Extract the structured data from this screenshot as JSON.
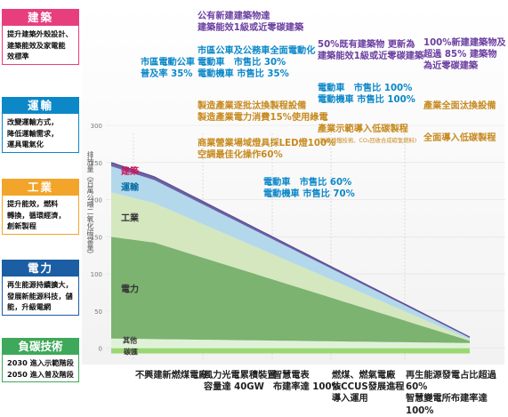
{
  "sections": [
    {
      "title": "建築",
      "color": "#e73f7e",
      "body": "提升建築外殼設計、\n建築能效及家電能\n效標準"
    },
    {
      "title": "運輸",
      "color": "#0c88c9",
      "body": "改變運輸方式，\n降低運輸需求，\n運具電氣化"
    },
    {
      "title": "工業",
      "color": "#f2a52a",
      "body": "提升能效，燃料\n轉換，循環經濟，\n創新製程"
    },
    {
      "title": "電力",
      "color": "#1b5ea3",
      "body": "再生能源持續擴大，\n發展新能源科技，儲\n能，升級電網"
    },
    {
      "title": "負碳技術",
      "color": "#3ea95a",
      "body": "2030 進入示範階段\n2050 進入普及階段"
    }
  ],
  "annotations_top": [
    {
      "id": "a1",
      "text": "市區電動公車\n普及率 35%",
      "color": "#0c88c9"
    },
    {
      "id": "a2",
      "text": "公有新建建築物達\n建築能效1級或近零碳建築",
      "color": "#6b3fa0"
    },
    {
      "id": "a3",
      "text": "市區公車及公務車全面電動化\n電動車　市售比 30%\n電動機車 市售比 35%",
      "color": "#0c88c9"
    },
    {
      "id": "a4",
      "text": "製造產業逐批汰換製程設備\n製造產業電力消費15%使用綠電",
      "color": "#c78a1f"
    },
    {
      "id": "a5",
      "text": "商業營業場域燈具採LED燈100%\n空調最佳化操作60%",
      "color": "#c78a1f"
    },
    {
      "id": "a6",
      "text": "50%既有建築物 更新為\n建築能效1級或近零碳建築",
      "color": "#6b3fa0"
    },
    {
      "id": "a7",
      "text": "電動車　市售比 100%\n電動機車 市售比 100%",
      "color": "#0c88c9"
    },
    {
      "id": "a8",
      "text": "產業示範導入低碳製程",
      "color": "#c78a1f"
    },
    {
      "id": "a8s",
      "text": "(氫能煉鐵技術、CO₂回收合成碳氫燃料)",
      "color": "#c78a1f"
    },
    {
      "id": "a9",
      "text": "100%新建建築物及\n超過 85% 建築物\n為近零碳建築",
      "color": "#6b3fa0"
    },
    {
      "id": "a10",
      "text": "產業全面汰換設備",
      "color": "#c78a1f"
    },
    {
      "id": "a11",
      "text": "全面導入低碳製程",
      "color": "#c78a1f"
    },
    {
      "id": "a12",
      "text": "電動車　市售比 60%\n電動機車 市售比 70%",
      "color": "#0c88c9"
    }
  ],
  "annotations_bottom": [
    {
      "id": "b1",
      "text": "不興建新燃煤電廠"
    },
    {
      "id": "b2",
      "text": "風力光電累積裝置\n容量達 40GW"
    },
    {
      "id": "b3",
      "text": "智慧電表\n布建率達 100%"
    },
    {
      "id": "b4",
      "text": "燃煤、燃氣電廠\n依CCUS發展進程\n導入運用"
    },
    {
      "id": "b5",
      "text": "再生能源發電占比超過 60%\n智慧變電所布建率達 100%"
    }
  ],
  "y_axis_label": "排放量（百萬公噸二氧化碳當量）",
  "chart_data": {
    "type": "area",
    "ylim": [
      -10,
      300
    ],
    "yticks": [
      0,
      50,
      100,
      150,
      200,
      250,
      300
    ],
    "xlim": [
      0,
      100
    ],
    "grid": true,
    "series": [
      {
        "name": "碳匯",
        "color": "#9ad873",
        "x": [
          0,
          100
        ],
        "values": [
          -7,
          -7
        ]
      },
      {
        "name": "其他",
        "color": "#dff2d8",
        "x": [
          0,
          100
        ],
        "values": [
          13,
          7
        ]
      },
      {
        "name": "電力",
        "color": "#7cb370",
        "x": [
          0,
          12,
          100
        ],
        "values": [
          137,
          130,
          3
        ]
      },
      {
        "name": "工業",
        "color": "#d4e7bf",
        "x": [
          0,
          100
        ],
        "values": [
          60,
          2
        ]
      },
      {
        "name": "運輸",
        "color": "#b3d8ec",
        "x": [
          0,
          100
        ],
        "values": [
          35,
          2
        ]
      },
      {
        "name": "建築",
        "color": "#6d62a4",
        "x": [
          0,
          100
        ],
        "values": [
          5,
          1
        ]
      }
    ],
    "labels": [
      "建築",
      "運輸",
      "工業",
      "電力",
      "其他",
      "碳匯"
    ]
  }
}
